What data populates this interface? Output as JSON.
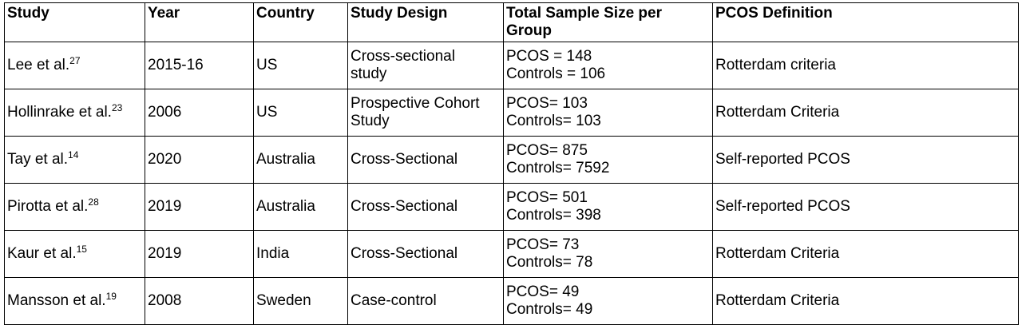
{
  "headers": {
    "study": "Study",
    "year": "Year",
    "country": "Country",
    "design": "Study Design",
    "sample_line1": "Total Sample Size per",
    "sample_line2": "Group",
    "definition": "PCOS Definition"
  },
  "rows": [
    {
      "study": "Lee et al.",
      "ref": "27",
      "year": "2015-16",
      "country": "US",
      "design_line1": "Cross-sectional",
      "design_line2": "study",
      "pcos": "PCOS = 148",
      "controls": "Controls = 106",
      "definition": "Rotterdam criteria"
    },
    {
      "study": "Hollinrake et al.",
      "ref": "23",
      "year": "2006",
      "country": "US",
      "design_line1": "Prospective Cohort",
      "design_line2": "Study",
      "pcos": "PCOS= 103",
      "controls": "Controls= 103",
      "definition": "Rotterdam Criteria"
    },
    {
      "study": "Tay et al.",
      "ref": "14",
      "year": "2020",
      "country": "Australia",
      "design_line1": "Cross-Sectional",
      "design_line2": "",
      "pcos": "PCOS= 875",
      "controls": "Controls= 7592",
      "definition": "Self-reported PCOS"
    },
    {
      "study": "Pirotta et al.",
      "ref": "28",
      "year": "2019",
      "country": "Australia",
      "design_line1": "Cross-Sectional",
      "design_line2": "",
      "pcos": "PCOS= 501",
      "controls": "Controls= 398",
      "definition": "Self-reported PCOS"
    },
    {
      "study": "Kaur et al.",
      "ref": "15",
      "year": "2019",
      "country": "India",
      "design_line1": "Cross-Sectional",
      "design_line2": "",
      "pcos": "PCOS= 73",
      "controls": "Controls= 78",
      "definition": "Rotterdam Criteria"
    },
    {
      "study": "Mansson et al.",
      "ref": "19",
      "year": "2008",
      "country": "Sweden",
      "design_line1": "Case-control",
      "design_line2": "",
      "pcos": "PCOS= 49",
      "controls": "Controls= 49",
      "definition": "Rotterdam Criteria"
    }
  ]
}
